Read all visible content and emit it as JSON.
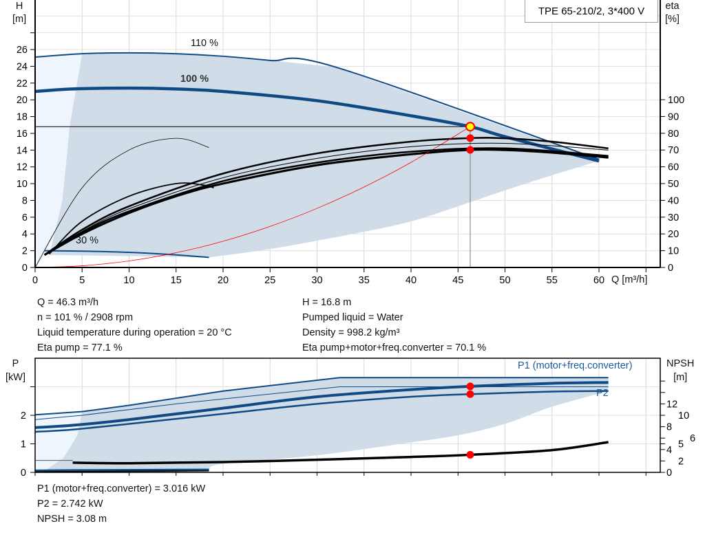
{
  "title_box": "TPE 65-210/2, 3*400 V",
  "chart_data": [
    {
      "type": "line",
      "xlabel": "Q [m³/h]",
      "ylabel_left": "H\n[m]",
      "ylabel_right": "eta\n[%]",
      "xlim": [
        0,
        66.4
      ],
      "ylim_left": [
        0,
        32
      ],
      "ylim_right": [
        0,
        131
      ],
      "x_ticks": [
        "0",
        "5",
        "10",
        "15",
        "20",
        "25",
        "30",
        "35",
        "40",
        "45",
        "50",
        "55",
        "60"
      ],
      "y_ticks_left": [
        "0",
        "2",
        "4",
        "6",
        "8",
        "10",
        "12",
        "14",
        "16",
        "18",
        "20",
        "22",
        "24",
        "26"
      ],
      "y_ticks_right": [
        "0",
        "10",
        "20",
        "30",
        "40",
        "50",
        "60",
        "70",
        "80",
        "90",
        "100"
      ],
      "grid": true,
      "annotations": [
        "110 %",
        "100 %",
        "30 %"
      ],
      "series": [
        {
          "name": "110 %",
          "axis": "H",
          "color": "#0f4a85",
          "x": [
            0,
            5,
            10,
            15,
            20,
            25,
            32,
            60
          ],
          "y": [
            25.1,
            25.5,
            25.6,
            25.5,
            25.2,
            24.7,
            23.9,
            12.9
          ]
        },
        {
          "name": "100 %",
          "axis": "H",
          "color": "#0f4a85",
          "x": [
            0,
            4,
            10,
            15,
            20,
            30,
            40,
            46.3,
            50,
            60
          ],
          "y": [
            21,
            21.3,
            21.4,
            21.3,
            21.0,
            19.9,
            18.1,
            16.8,
            15.6,
            12.7
          ]
        },
        {
          "name": "30 %",
          "axis": "H",
          "color": "#0f4a85",
          "x": [
            1,
            5,
            10,
            15,
            18.5
          ],
          "y": [
            2,
            1.95,
            1.8,
            1.5,
            1.2
          ]
        },
        {
          "axis": "eta",
          "color": "#000",
          "x": [
            1,
            5,
            10,
            20,
            30,
            40,
            46.3,
            50,
            55,
            61
          ],
          "y": [
            7.5,
            22.5,
            36.5,
            56,
            68,
            75,
            77.1,
            77,
            75,
            71
          ]
        },
        {
          "axis": "eta",
          "color": "#000",
          "x": [
            1,
            5,
            10,
            15,
            20,
            30,
            40,
            46.3,
            50,
            55,
            61
          ],
          "y": [
            7.5,
            20,
            32.5,
            42.5,
            50,
            61,
            67.5,
            70.1,
            70,
            68.5,
            65.5
          ]
        },
        {
          "axis": "eta",
          "color": "#000",
          "x": [
            1.5,
            5,
            10,
            15,
            18,
            19
          ],
          "y": [
            8,
            27.5,
            42.5,
            50,
            49,
            47.5
          ]
        },
        {
          "axis": "eta",
          "color": "#000",
          "x": [
            0,
            5,
            10,
            15,
            18.5
          ],
          "y": [
            0,
            47.5,
            70,
            77,
            71.5
          ]
        },
        {
          "axis": "H",
          "color": "#ff0000",
          "x": [
            0,
            5,
            10,
            15,
            20,
            25,
            30,
            35,
            40,
            46.3
          ],
          "y": [
            0,
            0.2,
            0.78,
            1.76,
            3.13,
            4.9,
            7.05,
            9.6,
            12.54,
            16.8
          ]
        }
      ],
      "duty_point": {
        "Q": 46.3,
        "H": 16.8,
        "eta_pump": 77.1,
        "eta_total": 70.1
      }
    },
    {
      "type": "line",
      "xlim": [
        0,
        66.4
      ],
      "ylim_left": [
        0,
        4
      ],
      "ylim_right": [
        0,
        20
      ],
      "ylabel_left": "P\n[kW]",
      "ylabel_right": "NPSH\n[m]",
      "y_ticks_left": [
        "0",
        "1",
        "2"
      ],
      "y_ticks_right": [
        "0",
        "2",
        "4",
        "5",
        "6",
        "8",
        "10",
        "12"
      ],
      "grid": true,
      "series": [
        {
          "name": "P1 (motor+freq.converter)",
          "axis": "P",
          "color": "#0f4a85",
          "x": [
            0,
            4,
            10,
            20,
            30,
            40,
            46.3,
            55,
            61
          ],
          "y": [
            1.57,
            1.65,
            1.85,
            2.25,
            2.65,
            2.9,
            3.016,
            3.12,
            3.15
          ]
        },
        {
          "name": "P2",
          "axis": "P",
          "color": "#0f4a85",
          "x": [
            0,
            4,
            10,
            20,
            30,
            40,
            46.3,
            55,
            61
          ],
          "y": [
            1.42,
            1.5,
            1.7,
            2.05,
            2.4,
            2.65,
            2.742,
            2.83,
            2.85
          ]
        },
        {
          "axis": "P",
          "color": "#0f4a85",
          "x": [
            0,
            5,
            10,
            20,
            32.4,
            61
          ],
          "y": [
            2.02,
            2.13,
            2.35,
            2.85,
            3.32,
            3.32
          ]
        },
        {
          "axis": "P",
          "color": "#0f4a85",
          "x": [
            0,
            5,
            15,
            32.4,
            61
          ],
          "y": [
            1.85,
            2.0,
            2.4,
            3.0,
            3.0
          ]
        },
        {
          "axis": "P",
          "color": "#0f4a85",
          "x": [
            0,
            4,
            18.5
          ],
          "y": [
            0.07,
            0.08,
            0.1
          ]
        },
        {
          "axis": "NPSH",
          "color": "#000",
          "x": [
            4,
            10,
            20,
            32,
            40,
            46.3,
            55,
            61
          ],
          "y": [
            1.7,
            1.6,
            1.8,
            2.3,
            2.7,
            3.08,
            3.9,
            5.3
          ]
        }
      ]
    }
  ],
  "results_top_left": [
    "Q = 46.3 m³/h",
    "n = 101 % / 2908 rpm",
    "Liquid temperature during operation = 20 °C",
    "Eta pump = 77.1 %"
  ],
  "results_top_right": [
    "H = 16.8 m",
    "Pumped liquid = Water",
    "Density = 998.2 kg/m³",
    "Eta pump+motor+freq.converter = 70.1 %"
  ],
  "results_bottom": [
    "P1 (motor+freq.converter) = 3.016 kW",
    "P2 = 2.742 kW",
    "NPSH = 3.08 m"
  ],
  "colors": {
    "curve": "#0f4a85",
    "area": "#d0dce8",
    "area_light": "#eef5fc",
    "duty": "#ff0000",
    "duty_fill": "#ffff00"
  }
}
